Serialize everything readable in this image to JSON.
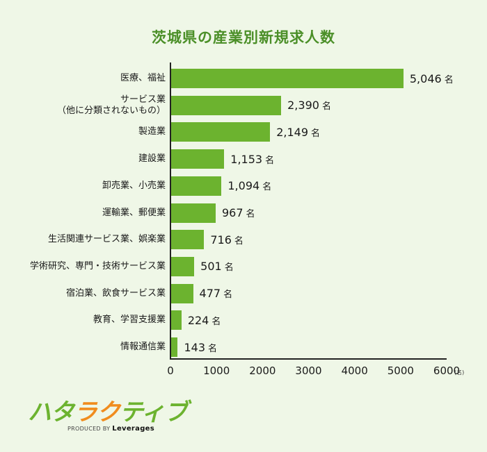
{
  "title": "茨城県の産業別新規求人数",
  "unit": "名",
  "axis_unit_label": "(名)",
  "chart_data": {
    "type": "bar",
    "orientation": "horizontal",
    "title": "茨城県の産業別新規求人数",
    "xlabel": "",
    "ylabel": "",
    "x_unit": "名",
    "xlim": [
      0,
      6000
    ],
    "xticks": [
      0,
      1000,
      2000,
      3000,
      4000,
      5000,
      6000
    ],
    "grid": false,
    "categories": [
      "医療、福祉",
      "サービス業(他に分類されないもの)",
      "製造業",
      "建設業",
      "卸売業、小売業",
      "運輸業、郵便業",
      "生活関連サービス業、娯楽業",
      "学術研究、専門・技術サービス業",
      "宿泊業、飲食サービス業",
      "教育、学習支援業",
      "情報通信業"
    ],
    "values": [
      5046,
      2390,
      2149,
      1153,
      1094,
      967,
      716,
      501,
      477,
      224,
      143
    ],
    "value_labels": [
      "5,046",
      "2,390",
      "2,149",
      "1,153",
      "1,094",
      "967",
      "716",
      "501",
      "477",
      "224",
      "143"
    ],
    "bar_color": "#6cb32f"
  },
  "rows": [
    {
      "line1": "医療、福祉",
      "line2": "",
      "value_label": "5,046"
    },
    {
      "line1": "サービス業",
      "line2": "（他に分類されないもの）",
      "value_label": "2,390"
    },
    {
      "line1": "製造業",
      "line2": "",
      "value_label": "2,149"
    },
    {
      "line1": "建設業",
      "line2": "",
      "value_label": "1,153"
    },
    {
      "line1": "卸売業、小売業",
      "line2": "",
      "value_label": "1,094"
    },
    {
      "line1": "運輸業、郵便業",
      "line2": "",
      "value_label": "967"
    },
    {
      "line1": "生活関連サービス業、娯楽業",
      "line2": "",
      "value_label": "716"
    },
    {
      "line1": "学術研究、専門・技術サービス業",
      "line2": "",
      "value_label": "501"
    },
    {
      "line1": "宿泊業、飲食サービス業",
      "line2": "",
      "value_label": "477"
    },
    {
      "line1": "教育、学習支援業",
      "line2": "",
      "value_label": "224"
    },
    {
      "line1": "情報通信業",
      "line2": "",
      "value_label": "143"
    }
  ],
  "ticks": [
    "0",
    "1000",
    "2000",
    "3000",
    "4000",
    "5000",
    "6000"
  ],
  "logo": {
    "chars": [
      {
        "c": "ハ",
        "color": "g"
      },
      {
        "c": "タ",
        "color": "g"
      },
      {
        "c": "ラ",
        "color": "o"
      },
      {
        "c": "ク",
        "color": "o"
      },
      {
        "c": "テ",
        "color": "g"
      },
      {
        "c": "ィ",
        "color": "g"
      },
      {
        "c": "ブ",
        "color": "g"
      }
    ],
    "produced_by": "PRODUCED BY",
    "brand": "Leverages"
  }
}
